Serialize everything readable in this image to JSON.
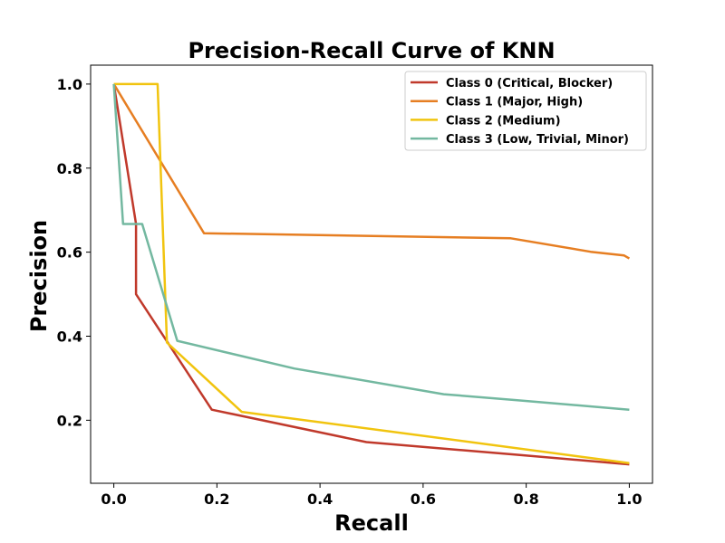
{
  "chart_data": {
    "type": "line",
    "title": "Precision-Recall Curve of KNN",
    "xlabel": "Recall",
    "ylabel": "Precision",
    "xlim": [
      -0.045,
      1.045
    ],
    "ylim": [
      0.05,
      1.045
    ],
    "xticks": [
      0.0,
      0.2,
      0.4,
      0.6,
      0.8,
      1.0
    ],
    "xtick_labels": [
      "0.0",
      "0.2",
      "0.4",
      "0.6",
      "0.8",
      "1.0"
    ],
    "yticks": [
      0.2,
      0.4,
      0.6,
      0.8,
      1.0
    ],
    "ytick_labels": [
      "0.2",
      "0.4",
      "0.6",
      "0.8",
      "1.0"
    ],
    "grid": false,
    "legend_position": "top-right",
    "series": [
      {
        "name": "Class 0 (Critical, Blocker)",
        "color": "#c0392b",
        "points": [
          [
            0.0,
            1.0
          ],
          [
            0.043,
            0.667
          ],
          [
            0.043,
            0.5
          ],
          [
            0.19,
            0.225
          ],
          [
            0.49,
            0.148
          ],
          [
            0.78,
            0.118
          ],
          [
            1.0,
            0.095
          ]
        ]
      },
      {
        "name": "Class 1 (Major, High)",
        "color": "#e67e22",
        "points": [
          [
            0.0,
            1.0
          ],
          [
            0.175,
            0.645
          ],
          [
            0.77,
            0.633
          ],
          [
            0.925,
            0.601
          ],
          [
            0.99,
            0.592
          ],
          [
            1.0,
            0.585
          ]
        ]
      },
      {
        "name": "Class 2 (Medium)",
        "color": "#f1c40f",
        "points": [
          [
            0.0,
            1.0
          ],
          [
            0.085,
            1.0
          ],
          [
            0.103,
            0.385
          ],
          [
            0.248,
            0.22
          ],
          [
            1.0,
            0.098
          ]
        ]
      },
      {
        "name": "Class 3 (Low, Trivial, Minor)",
        "color": "#73b8a0",
        "points": [
          [
            0.0,
            1.0
          ],
          [
            0.018,
            0.667
          ],
          [
            0.055,
            0.667
          ],
          [
            0.123,
            0.389
          ],
          [
            0.35,
            0.323
          ],
          [
            0.64,
            0.262
          ],
          [
            0.78,
            0.248
          ],
          [
            1.0,
            0.225
          ]
        ]
      }
    ]
  }
}
